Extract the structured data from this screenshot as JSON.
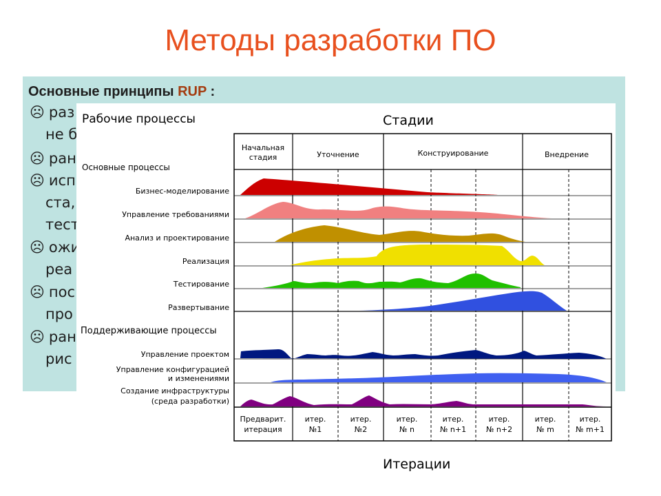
{
  "slide": {
    "title": "Методы разработки ПО"
  },
  "text_box": {
    "heading_main": "Основные принципы",
    "heading_accent": "RUP",
    "heading_tail": " :",
    "bullet_symbol": "☹",
    "visible_lines": [
      {
        "bullet": true,
        "text": "раз"
      },
      {
        "bullet": false,
        "text": "не б"
      },
      {
        "bullet": true,
        "text": "ран"
      },
      {
        "bullet": true,
        "text": "исп"
      },
      {
        "bullet": false,
        "text": "ста,"
      },
      {
        "bullet": false,
        "text": "тест"
      },
      {
        "bullet": true,
        "text": "ожи"
      },
      {
        "bullet": false,
        "text": "реа"
      },
      {
        "bullet": true,
        "text": "пос"
      },
      {
        "bullet": false,
        "text": "про"
      },
      {
        "bullet": true,
        "text": "ран"
      },
      {
        "bullet": false,
        "text": "рис"
      }
    ]
  },
  "diagram": {
    "workflows_title": "Рабочие процессы",
    "phases_title": "Стадии",
    "iterations_title": "Итерации",
    "core_group_label": "Основные процессы",
    "support_group_label": "Поддерживающие процессы",
    "phases": [
      {
        "line1": "Начальная",
        "line2": "стадия"
      },
      {
        "line1": "Уточнение",
        "line2": ""
      },
      {
        "line1": "Конструирование",
        "line2": ""
      },
      {
        "line1": "Внедрение",
        "line2": ""
      }
    ],
    "core_workflows": [
      {
        "label": "Бизнес-моделирование",
        "color": "#cc0000"
      },
      {
        "label": "Управление требованиями",
        "color": "#f08080"
      },
      {
        "label": "Анализ и проектирование",
        "color": "#c09000"
      },
      {
        "label": "Реализация",
        "color": "#f0e000"
      },
      {
        "label": "Тестирование",
        "color": "#20c000"
      },
      {
        "label": "Развертывание",
        "color": "#3050e0"
      }
    ],
    "support_workflows": [
      {
        "label1": "Управление проектом",
        "label2": "",
        "color": "#001880"
      },
      {
        "label1": "Управление конфигурацией",
        "label2": "и изменениями",
        "color": "#4060f0"
      },
      {
        "label1": "Создание инфраструктуры",
        "label2": "(среда разработки)",
        "color": "#800080"
      }
    ],
    "iterations": [
      {
        "line1": "Предварит.",
        "line2": "итерация"
      },
      {
        "line1": "итер.",
        "line2": "№1"
      },
      {
        "line1": "итер.",
        "line2": "№2"
      },
      {
        "line1": "итер.",
        "line2": "№ n"
      },
      {
        "line1": "итер.",
        "line2": "№ n+1"
      },
      {
        "line1": "итер.",
        "line2": "№ n+2"
      },
      {
        "line1": "итер.",
        "line2": "№ m"
      },
      {
        "line1": "итер.",
        "line2": "№ m+1"
      }
    ]
  }
}
